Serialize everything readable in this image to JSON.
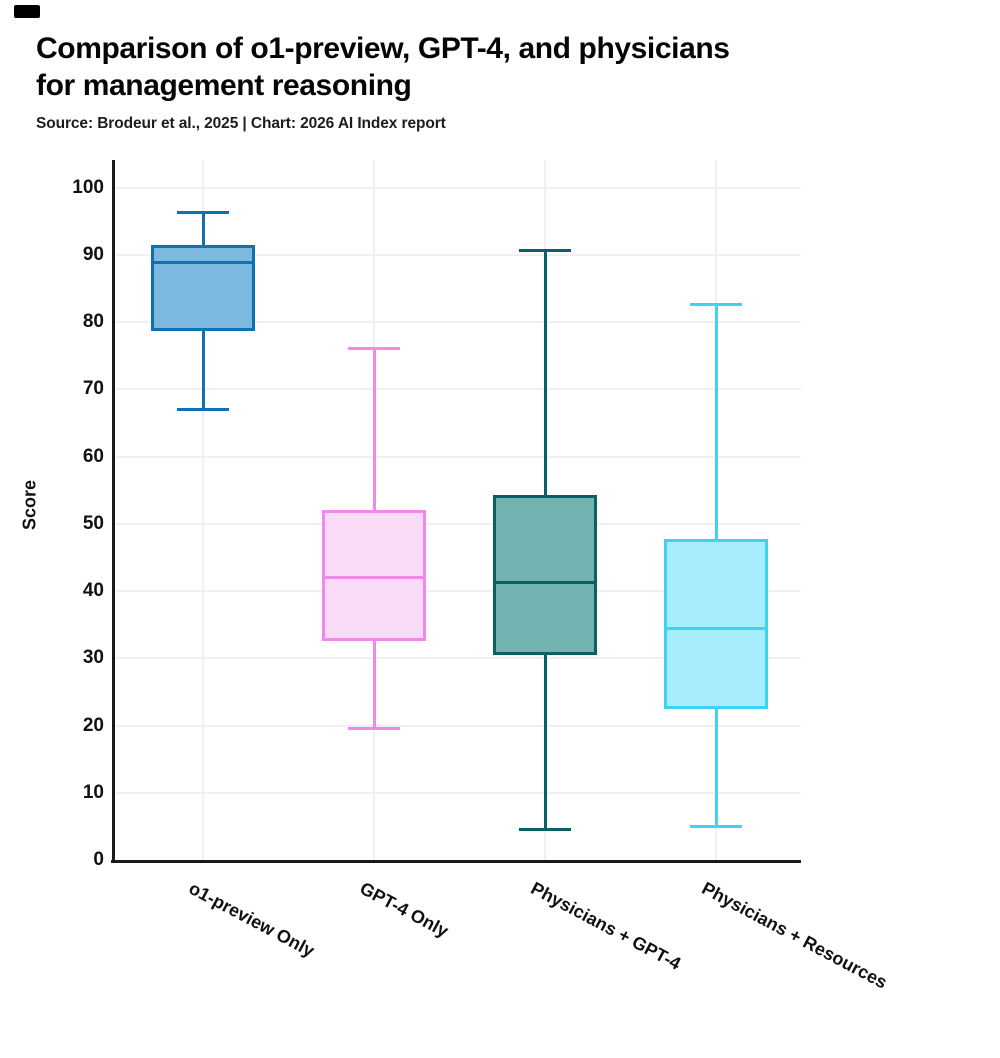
{
  "page": {
    "title": "Comparison of o1-preview, GPT-4, and physicians\nfor management reasoning",
    "subtitle": "Source: Brodeur et al., 2025 | Chart: 2026 AI Index report"
  },
  "chart_data": {
    "type": "boxplot",
    "title": "Comparison of o1-preview, GPT-4, and physicians for management reasoning",
    "subtitle": "Source: Brodeur et al., 2025 | Chart: 2026 AI Index report",
    "xlabel": "",
    "ylabel": "Score",
    "ylim": [
      0,
      100
    ],
    "yticks": [
      0,
      10,
      20,
      30,
      40,
      50,
      60,
      70,
      80,
      90,
      100
    ],
    "grid": true,
    "legend": "none",
    "categories": [
      "o1-preview Only",
      "GPT-4 Only",
      "Physicians + GPT-4",
      "Physicians + Resources"
    ],
    "series": [
      {
        "name": "o1-preview Only",
        "whisker_low": 67,
        "q1": 78.6,
        "median": 88.8,
        "q3": 91.5,
        "whisker_high": 96.3,
        "stroke": "#1170b0",
        "fill": "#7db9de"
      },
      {
        "name": "GPT-4 Only",
        "whisker_low": 19.5,
        "q1": 32.5,
        "median": 42,
        "q3": 52,
        "whisker_high": 76,
        "stroke": "#f287ee",
        "fill": "#fadcf9"
      },
      {
        "name": "Physicians + GPT-4",
        "whisker_low": 4.5,
        "q1": 30.5,
        "median": 41.3,
        "q3": 54.3,
        "whisker_high": 90.7,
        "stroke": "#0b5f66",
        "fill": "#72b2b0"
      },
      {
        "name": "Physicians + Resources",
        "whisker_low": 5,
        "q1": 22.5,
        "median": 34.4,
        "q3": 47.8,
        "whisker_high": 82.6,
        "stroke": "#3fd2f5",
        "fill": "#a6ecfc"
      }
    ],
    "colors": {
      "axis": "#1a1a1a",
      "gridline": "#f0f0f0",
      "text": "#111111"
    }
  }
}
